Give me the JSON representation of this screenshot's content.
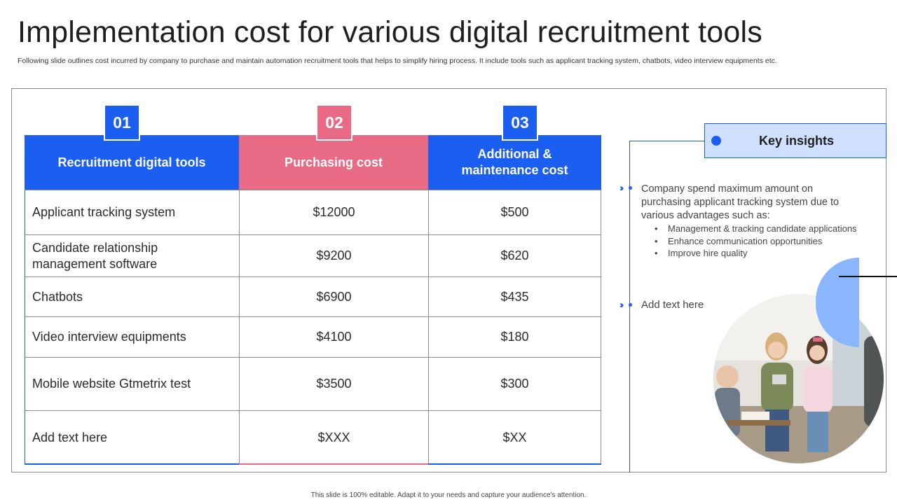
{
  "slide": {
    "title": "Implementation cost for various digital recruitment tools",
    "subtitle": "Following slide outlines cost incurred by company to purchase and maintain automation recruitment tools that helps to simplify hiring process. It include tools such as applicant tracking system, chatbots, video interview equipments etc.",
    "footer": "This slide is 100% editable. Adapt it to your needs and capture your audience's attention."
  },
  "table": {
    "numbers": [
      "01",
      "02",
      "03"
    ],
    "headers": [
      "Recruitment digital tools",
      "Purchasing cost",
      "Additional & maintenance cost"
    ],
    "rows": [
      {
        "tool": "Applicant tracking system",
        "purchase": "$12000",
        "maintenance": "$500"
      },
      {
        "tool": "Candidate relationship management software",
        "purchase": "$9200",
        "maintenance": "$620"
      },
      {
        "tool": "Chatbots",
        "purchase": "$6900",
        "maintenance": "$435"
      },
      {
        "tool": "Video interview equipments",
        "purchase": "$4100",
        "maintenance": "$180"
      },
      {
        "tool": "Mobile website Gtmetrix test",
        "purchase": "$3500",
        "maintenance": "$300"
      },
      {
        "tool": "Add text here",
        "purchase": "$XXX",
        "maintenance": "$XX"
      }
    ]
  },
  "insights": {
    "title": "Key insights",
    "main": "Company spend maximum amount on purchasing applicant tracking system due to various advantages such as:",
    "points": [
      "Management & tracking candidate applications",
      "Enhance communication opportunities",
      "Improve hire quality"
    ],
    "second": "Add text here"
  },
  "colors": {
    "accent_blue": "#1a5ef2",
    "accent_pink": "#e96a84",
    "light_blue": "#cfe0ff",
    "shape_blue": "#8ab6ff"
  }
}
